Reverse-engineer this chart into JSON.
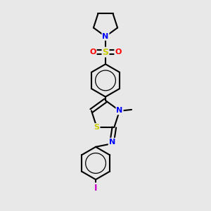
{
  "background_color": "#e8e8e8",
  "atom_colors": {
    "N": "#0000ff",
    "S": "#cccc00",
    "O": "#ff0000",
    "I": "#cc00cc",
    "C": "black"
  },
  "line_width": 1.5,
  "font_size": 8,
  "figsize": [
    3.0,
    3.0
  ],
  "dpi": 100,
  "xlim": [
    0.15,
    0.85
  ],
  "ylim": [
    0.02,
    0.98
  ]
}
